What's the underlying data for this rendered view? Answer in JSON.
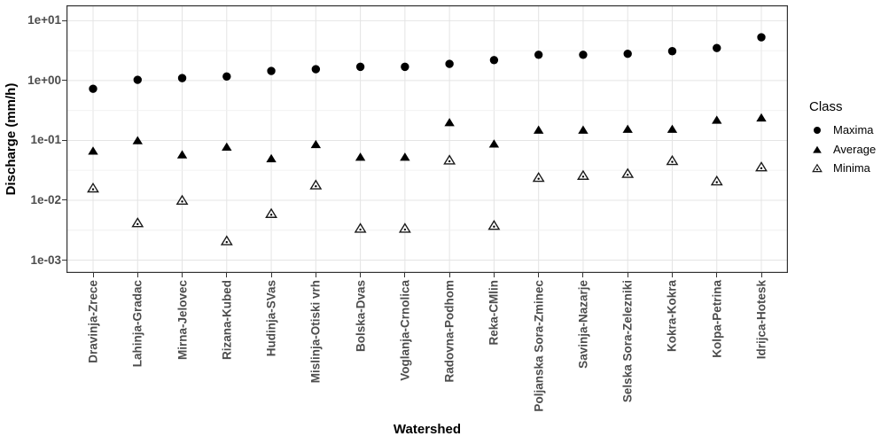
{
  "chart_data": {
    "type": "scatter",
    "xlabel": "Watershed",
    "ylabel": "Discharge (mm/h)",
    "y_scale": "log10",
    "y_ticks": [
      {
        "label": "1e+01",
        "value": 10
      },
      {
        "label": "1e+00",
        "value": 1
      },
      {
        "label": "1e-01",
        "value": 0.1
      },
      {
        "label": "1e-02",
        "value": 0.01
      },
      {
        "label": "1e-03",
        "value": 0.001
      }
    ],
    "y_minor_gridlines": [
      3.1623,
      0.31623,
      0.031623,
      0.0031623
    ],
    "ylim": [
      0.00061,
      18.1
    ],
    "grid": "major-and-minor, light gray on white panel",
    "legend_position": "right",
    "legend_title": "Class",
    "categories": [
      "Dravinja-Zrece",
      "Lahinja-Gradac",
      "Mirna-Jelovec",
      "Rizana-Kubed",
      "Hudinja-SVas",
      "Mislinja-Otiski vrh",
      "Bolska-Dvas",
      "Voglanja-Crnolica",
      "Radovna-Podhom",
      "Reka-CMlin",
      "Poljanska Sora-Zminec",
      "Savinja-Nazarje",
      "Selska Sora-Zelezniki",
      "Kokra-Kokra",
      "Kolpa-Petrina",
      "Idrijca-Hotesk"
    ],
    "series": [
      {
        "name": "Maxima",
        "marker": "filled-circle",
        "values": [
          0.73,
          1.03,
          1.1,
          1.17,
          1.45,
          1.55,
          1.7,
          1.7,
          1.9,
          2.2,
          2.7,
          2.7,
          2.8,
          3.1,
          3.5,
          5.3
        ]
      },
      {
        "name": "Average",
        "marker": "filled-triangle",
        "values": [
          0.067,
          0.1,
          0.058,
          0.078,
          0.05,
          0.086,
          0.053,
          0.053,
          0.2,
          0.088,
          0.15,
          0.15,
          0.155,
          0.155,
          0.22,
          0.24
        ]
      },
      {
        "name": "Minima",
        "marker": "open-triangle-dot",
        "values": [
          0.016,
          0.0042,
          0.01,
          0.0021,
          0.006,
          0.018,
          0.0034,
          0.0034,
          0.047,
          0.0038,
          0.024,
          0.026,
          0.028,
          0.046,
          0.021,
          0.036
        ]
      }
    ],
    "colors": {
      "marker": "#000000",
      "panel_background": "#ffffff",
      "panel_border": "#333333",
      "grid_major": "#e4e4e4",
      "grid_minor": "#f0f0f0",
      "tick_text": "#4d4d4d",
      "title_text": "#000000"
    }
  }
}
